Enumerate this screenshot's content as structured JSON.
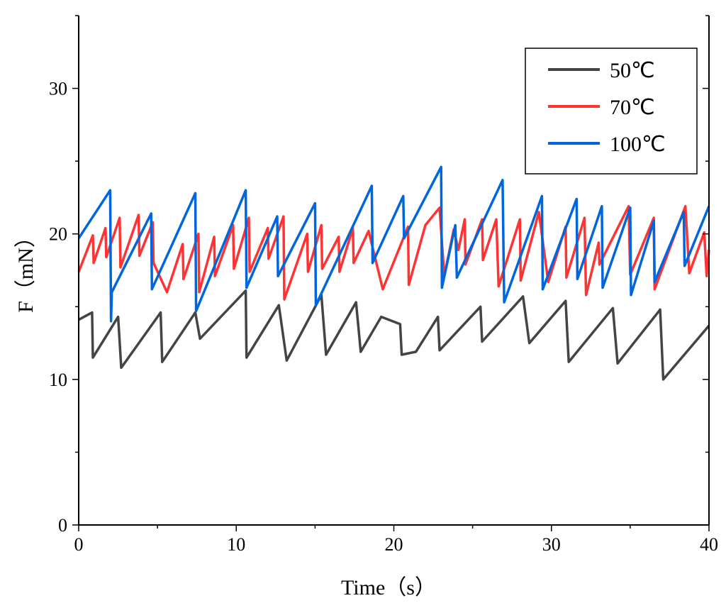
{
  "chart_data": {
    "type": "line",
    "title": "",
    "xlabel": "Time（s）",
    "ylabel": "F（mN）",
    "xlim": [
      0,
      40
    ],
    "ylim": [
      0,
      35
    ],
    "xticks": [
      0,
      10,
      20,
      30,
      40
    ],
    "yticks": [
      0,
      10,
      20,
      30
    ],
    "grid": false,
    "legend_position": "top-right",
    "series": [
      {
        "name": "50℃",
        "color": "#444444",
        "points": [
          [
            0,
            14.1
          ],
          [
            0.85,
            14.6
          ],
          [
            0.9,
            11.5
          ],
          [
            2.5,
            14.3
          ],
          [
            2.7,
            10.8
          ],
          [
            5.2,
            14.6
          ],
          [
            5.3,
            11.2
          ],
          [
            7.4,
            14.6
          ],
          [
            7.7,
            12.8
          ],
          [
            10.6,
            16.1
          ],
          [
            10.65,
            11.5
          ],
          [
            12.7,
            15.1
          ],
          [
            13.2,
            11.3
          ],
          [
            15.4,
            15.8
          ],
          [
            15.7,
            11.7
          ],
          [
            17.6,
            15.3
          ],
          [
            17.9,
            11.9
          ],
          [
            19.2,
            14.3
          ],
          [
            20.4,
            13.8
          ],
          [
            20.5,
            11.7
          ],
          [
            21.4,
            11.9
          ],
          [
            22.8,
            14.3
          ],
          [
            22.9,
            12.0
          ],
          [
            25.5,
            15.0
          ],
          [
            25.6,
            12.6
          ],
          [
            28.2,
            15.7
          ],
          [
            28.6,
            12.5
          ],
          [
            30.9,
            15.4
          ],
          [
            31.1,
            11.2
          ],
          [
            33.9,
            14.9
          ],
          [
            34.2,
            11.1
          ],
          [
            36.9,
            14.8
          ],
          [
            37.1,
            10.0
          ],
          [
            40,
            13.7
          ]
        ]
      },
      {
        "name": "70℃",
        "color": "#ff3333",
        "points": [
          [
            0,
            17.4
          ],
          [
            0.9,
            19.9
          ],
          [
            0.95,
            18.0
          ],
          [
            1.7,
            20.4
          ],
          [
            1.75,
            18.4
          ],
          [
            2.6,
            21.1
          ],
          [
            2.65,
            17.7
          ],
          [
            3.8,
            21.3
          ],
          [
            3.85,
            18.5
          ],
          [
            4.7,
            20.8
          ],
          [
            4.75,
            18.0
          ],
          [
            5.6,
            16.0
          ],
          [
            6.6,
            19.3
          ],
          [
            6.65,
            16.9
          ],
          [
            7.6,
            20.0
          ],
          [
            7.65,
            16.0
          ],
          [
            8.6,
            19.8
          ],
          [
            8.65,
            17.1
          ],
          [
            9.8,
            20.6
          ],
          [
            9.85,
            17.6
          ],
          [
            10.8,
            21.1
          ],
          [
            10.85,
            17.4
          ],
          [
            12.0,
            20.4
          ],
          [
            12.05,
            18.3
          ],
          [
            13.0,
            21.2
          ],
          [
            13.05,
            15.5
          ],
          [
            14.5,
            20.0
          ],
          [
            14.55,
            17.4
          ],
          [
            15.4,
            20.6
          ],
          [
            15.45,
            17.6
          ],
          [
            16.5,
            19.8
          ],
          [
            16.55,
            17.4
          ],
          [
            17.4,
            20.4
          ],
          [
            17.45,
            18.0
          ],
          [
            18.4,
            20.2
          ],
          [
            19.3,
            16.2
          ],
          [
            20.9,
            20.5
          ],
          [
            20.95,
            16.5
          ],
          [
            22.0,
            20.6
          ],
          [
            22.9,
            21.8
          ],
          [
            23.2,
            17.1
          ],
          [
            23.8,
            20.3
          ],
          [
            24.1,
            18.9
          ],
          [
            24.5,
            21.0
          ],
          [
            24.55,
            17.9
          ],
          [
            25.6,
            21.0
          ],
          [
            25.65,
            18.2
          ],
          [
            26.5,
            21.0
          ],
          [
            26.65,
            16.4
          ],
          [
            28.0,
            21.0
          ],
          [
            28.05,
            16.8
          ],
          [
            29.2,
            21.5
          ],
          [
            29.8,
            16.7
          ],
          [
            30.9,
            20.5
          ],
          [
            30.95,
            17.0
          ],
          [
            32.1,
            21.1
          ],
          [
            32.2,
            15.8
          ],
          [
            33.0,
            19.4
          ],
          [
            33.05,
            17.9
          ],
          [
            34.9,
            21.9
          ],
          [
            35.0,
            17.2
          ],
          [
            36.5,
            21.1
          ],
          [
            36.55,
            16.2
          ],
          [
            38.5,
            21.9
          ],
          [
            38.75,
            17.3
          ],
          [
            39.7,
            20.1
          ],
          [
            39.85,
            17.1
          ],
          [
            40,
            18.9
          ]
        ]
      },
      {
        "name": "100℃",
        "color": "#0066dd",
        "points": [
          [
            0,
            19.7
          ],
          [
            2.0,
            23.0
          ],
          [
            2.05,
            14.0
          ],
          [
            2.1,
            16.0
          ],
          [
            4.6,
            21.4
          ],
          [
            4.65,
            16.2
          ],
          [
            7.4,
            22.8
          ],
          [
            7.45,
            14.7
          ],
          [
            10.6,
            23.0
          ],
          [
            10.65,
            16.3
          ],
          [
            12.6,
            21.2
          ],
          [
            12.65,
            17.1
          ],
          [
            15.0,
            22.1
          ],
          [
            15.05,
            15.1
          ],
          [
            18.6,
            23.3
          ],
          [
            18.65,
            18.0
          ],
          [
            20.6,
            22.6
          ],
          [
            20.65,
            19.7
          ],
          [
            23.0,
            24.6
          ],
          [
            23.05,
            16.3
          ],
          [
            23.9,
            20.6
          ],
          [
            24.0,
            17.0
          ],
          [
            26.9,
            23.7
          ],
          [
            27.0,
            15.3
          ],
          [
            29.4,
            22.6
          ],
          [
            29.45,
            16.2
          ],
          [
            31.6,
            22.4
          ],
          [
            31.65,
            16.9
          ],
          [
            33.2,
            21.9
          ],
          [
            33.25,
            16.3
          ],
          [
            35.0,
            21.8
          ],
          [
            35.05,
            15.8
          ],
          [
            36.5,
            20.9
          ],
          [
            36.55,
            16.7
          ],
          [
            38.4,
            21.5
          ],
          [
            38.45,
            17.8
          ],
          [
            40,
            21.9
          ]
        ]
      }
    ]
  }
}
